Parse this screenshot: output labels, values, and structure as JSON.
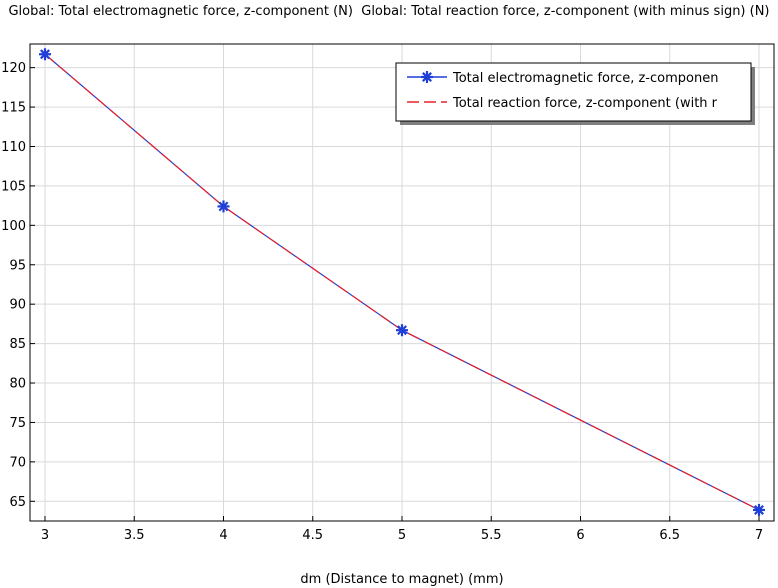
{
  "chart_data": {
    "type": "line",
    "title": "Global: Total electromagnetic force, z-component (N)  Global: Total reaction force, z-component (with minus sign) (N)",
    "xlabel": "dm (Distance to magnet) (mm)",
    "ylabel": "",
    "xlim": [
      3,
      7
    ],
    "ylim": [
      62.5,
      123
    ],
    "x_ticks": [
      3,
      3.5,
      4,
      4.5,
      5,
      5.5,
      6,
      6.5,
      7
    ],
    "y_ticks": [
      65,
      70,
      75,
      80,
      85,
      90,
      95,
      100,
      105,
      110,
      115,
      120
    ],
    "x": [
      3,
      4,
      5,
      7
    ],
    "series": [
      {
        "name": "Total electromagnetic force, z-componen",
        "values": [
          121.7,
          102.4,
          86.7,
          63.9
        ],
        "color": "#1f3fd6",
        "marker": "asterisk",
        "line_style": "solid"
      },
      {
        "name": "Total reaction force, z-component (with r",
        "values": [
          121.7,
          102.4,
          86.7,
          63.9
        ],
        "color": "#e8202a",
        "marker": "none",
        "line_style": "dashed"
      }
    ],
    "grid": true,
    "legend_position": "top-right"
  }
}
